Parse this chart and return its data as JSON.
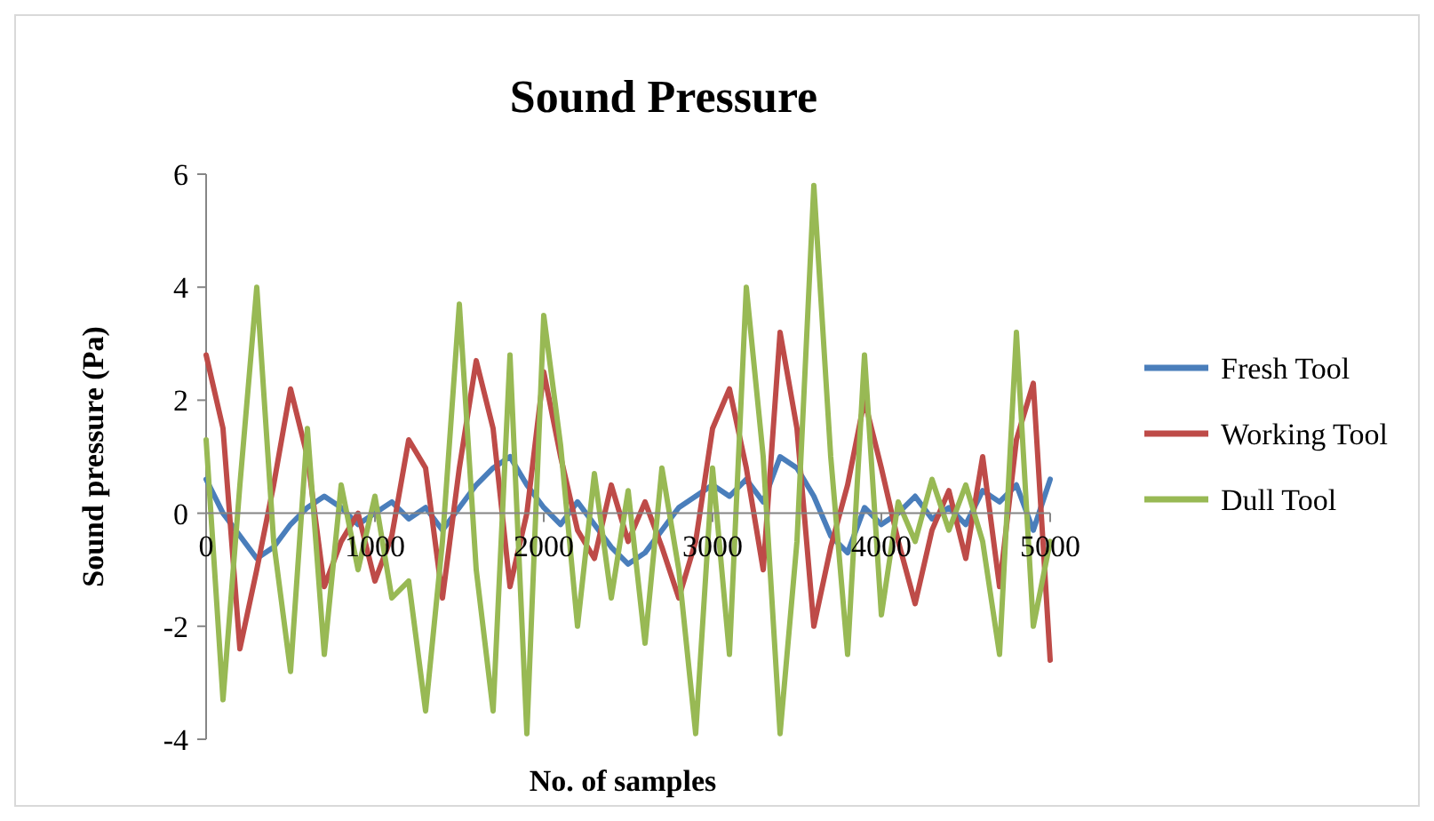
{
  "chart_data": {
    "type": "line",
    "title": "Sound Pressure",
    "xlabel": "No. of samples",
    "ylabel": "Sound pressure (Pa)",
    "x": [
      0,
      100,
      200,
      300,
      400,
      500,
      600,
      700,
      800,
      900,
      1000,
      1100,
      1200,
      1300,
      1400,
      1500,
      1600,
      1700,
      1800,
      1900,
      2000,
      2100,
      2200,
      2300,
      2400,
      2500,
      2600,
      2700,
      2800,
      2900,
      3000,
      3100,
      3200,
      3300,
      3400,
      3500,
      3600,
      3700,
      3800,
      3900,
      4000,
      4100,
      4200,
      4300,
      4400,
      4500,
      4600,
      4700,
      4800,
      4900,
      5000
    ],
    "series": [
      {
        "name": "Fresh Tool",
        "color": "#4a7ebb",
        "values": [
          0.6,
          0.0,
          -0.4,
          -0.8,
          -0.6,
          -0.2,
          0.1,
          0.3,
          0.1,
          -0.2,
          0.0,
          0.2,
          -0.1,
          0.1,
          -0.3,
          0.1,
          0.5,
          0.8,
          1.0,
          0.5,
          0.1,
          -0.2,
          0.2,
          -0.2,
          -0.6,
          -0.9,
          -0.7,
          -0.3,
          0.1,
          0.3,
          0.5,
          0.3,
          0.6,
          0.2,
          1.0,
          0.8,
          0.3,
          -0.4,
          -0.7,
          0.1,
          -0.2,
          0.0,
          0.3,
          -0.1,
          0.1,
          -0.2,
          0.4,
          0.2,
          0.5,
          -0.3,
          0.6
        ]
      },
      {
        "name": "Working Tool",
        "color": "#be4b48",
        "values": [
          2.8,
          1.5,
          -2.4,
          -1.0,
          0.5,
          2.2,
          1.0,
          -1.3,
          -0.5,
          0.0,
          -1.2,
          -0.4,
          1.3,
          0.8,
          -1.5,
          0.8,
          2.7,
          1.5,
          -1.3,
          0.0,
          2.5,
          1.0,
          -0.3,
          -0.8,
          0.5,
          -0.5,
          0.2,
          -0.6,
          -1.5,
          -0.5,
          1.5,
          2.2,
          0.8,
          -1.0,
          3.2,
          1.5,
          -2.0,
          -0.6,
          0.5,
          2.0,
          0.8,
          -0.5,
          -1.6,
          -0.3,
          0.4,
          -0.8,
          1.0,
          -1.3,
          1.3,
          2.3,
          -2.6
        ]
      },
      {
        "name": "Dull Tool",
        "color": "#98b954",
        "values": [
          1.3,
          -3.3,
          0.5,
          4.0,
          -0.5,
          -2.8,
          1.5,
          -2.5,
          0.5,
          -1.0,
          0.3,
          -1.5,
          -1.2,
          -3.5,
          -0.5,
          3.7,
          -1.0,
          -3.5,
          2.8,
          -3.9,
          3.5,
          1.2,
          -2.0,
          0.7,
          -1.5,
          0.4,
          -2.3,
          0.8,
          -1.0,
          -3.9,
          0.8,
          -2.5,
          4.0,
          1.0,
          -3.9,
          -0.5,
          5.8,
          1.0,
          -2.5,
          2.8,
          -1.8,
          0.2,
          -0.5,
          0.6,
          -0.3,
          0.5,
          -0.5,
          -2.5,
          3.2,
          -2.0,
          -0.5
        ]
      }
    ],
    "xlim": [
      0,
      5000
    ],
    "xticks": [
      0,
      1000,
      2000,
      3000,
      4000,
      5000
    ],
    "ylim": [
      -4,
      6
    ],
    "yticks": [
      -4,
      -2,
      0,
      2,
      4,
      6
    ],
    "legend": "right",
    "grid": false,
    "marker": "none",
    "line_style": "solid"
  }
}
